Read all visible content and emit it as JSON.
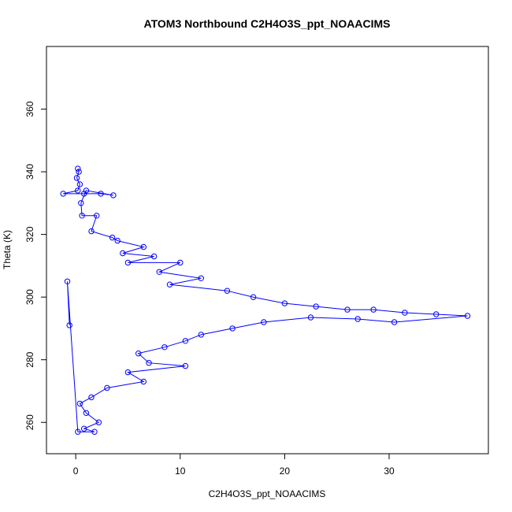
{
  "chart_data": {
    "type": "scatter",
    "title": "ATOM3 Northbound C2H4O3S_ppt_NOAACIMS",
    "xlabel": "C2H4O3S_ppt_NOAACIMS",
    "ylabel": "Theta (K)",
    "xlim": [
      -2.8,
      39.5
    ],
    "ylim": [
      250,
      380
    ],
    "x_ticks": [
      0,
      10,
      20,
      30
    ],
    "y_ticks": [
      260,
      280,
      300,
      320,
      340,
      360
    ],
    "grid": false,
    "legend": "none",
    "marker": "open circle",
    "connected": true,
    "color": "#0000ff",
    "points": [
      {
        "x": 0.2,
        "y": 341
      },
      {
        "x": 0.3,
        "y": 340
      },
      {
        "x": 0.1,
        "y": 338
      },
      {
        "x": 0.4,
        "y": 336
      },
      {
        "x": 0.2,
        "y": 334
      },
      {
        "x": -1.2,
        "y": 333
      },
      {
        "x": 0.8,
        "y": 333
      },
      {
        "x": 2.4,
        "y": 333
      },
      {
        "x": 3.6,
        "y": 332.5
      },
      {
        "x": 1.0,
        "y": 334
      },
      {
        "x": 0.5,
        "y": 330
      },
      {
        "x": 0.6,
        "y": 326
      },
      {
        "x": 2.0,
        "y": 326
      },
      {
        "x": 1.5,
        "y": 321
      },
      {
        "x": 3.5,
        "y": 319
      },
      {
        "x": 4.0,
        "y": 318
      },
      {
        "x": 6.5,
        "y": 316
      },
      {
        "x": 4.5,
        "y": 314
      },
      {
        "x": 7.5,
        "y": 313
      },
      {
        "x": 5.0,
        "y": 311
      },
      {
        "x": 10.0,
        "y": 311
      },
      {
        "x": 8.0,
        "y": 308
      },
      {
        "x": 12.0,
        "y": 306
      },
      {
        "x": 9.0,
        "y": 304
      },
      {
        "x": 14.5,
        "y": 302
      },
      {
        "x": 17.0,
        "y": 300
      },
      {
        "x": 20.0,
        "y": 298
      },
      {
        "x": 23.0,
        "y": 297
      },
      {
        "x": 26.0,
        "y": 296
      },
      {
        "x": 28.5,
        "y": 296
      },
      {
        "x": 31.5,
        "y": 295
      },
      {
        "x": 34.5,
        "y": 294.5
      },
      {
        "x": 37.5,
        "y": 294
      },
      {
        "x": 30.5,
        "y": 292
      },
      {
        "x": 27.0,
        "y": 293
      },
      {
        "x": 22.5,
        "y": 293.5
      },
      {
        "x": 18.0,
        "y": 292
      },
      {
        "x": 15.0,
        "y": 290
      },
      {
        "x": 12.0,
        "y": 288
      },
      {
        "x": 10.5,
        "y": 286
      },
      {
        "x": 8.5,
        "y": 284
      },
      {
        "x": 6.0,
        "y": 282
      },
      {
        "x": 7.0,
        "y": 279
      },
      {
        "x": 10.5,
        "y": 278
      },
      {
        "x": 5.0,
        "y": 276
      },
      {
        "x": 6.5,
        "y": 273
      },
      {
        "x": 3.0,
        "y": 271
      },
      {
        "x": 1.5,
        "y": 268
      },
      {
        "x": 0.4,
        "y": 266
      },
      {
        "x": 1.0,
        "y": 263
      },
      {
        "x": 2.2,
        "y": 260
      },
      {
        "x": 0.8,
        "y": 258
      },
      {
        "x": 1.8,
        "y": 257
      },
      {
        "x": 0.2,
        "y": 257
      },
      {
        "x": -0.8,
        "y": 305
      },
      {
        "x": -0.6,
        "y": 291
      }
    ]
  }
}
